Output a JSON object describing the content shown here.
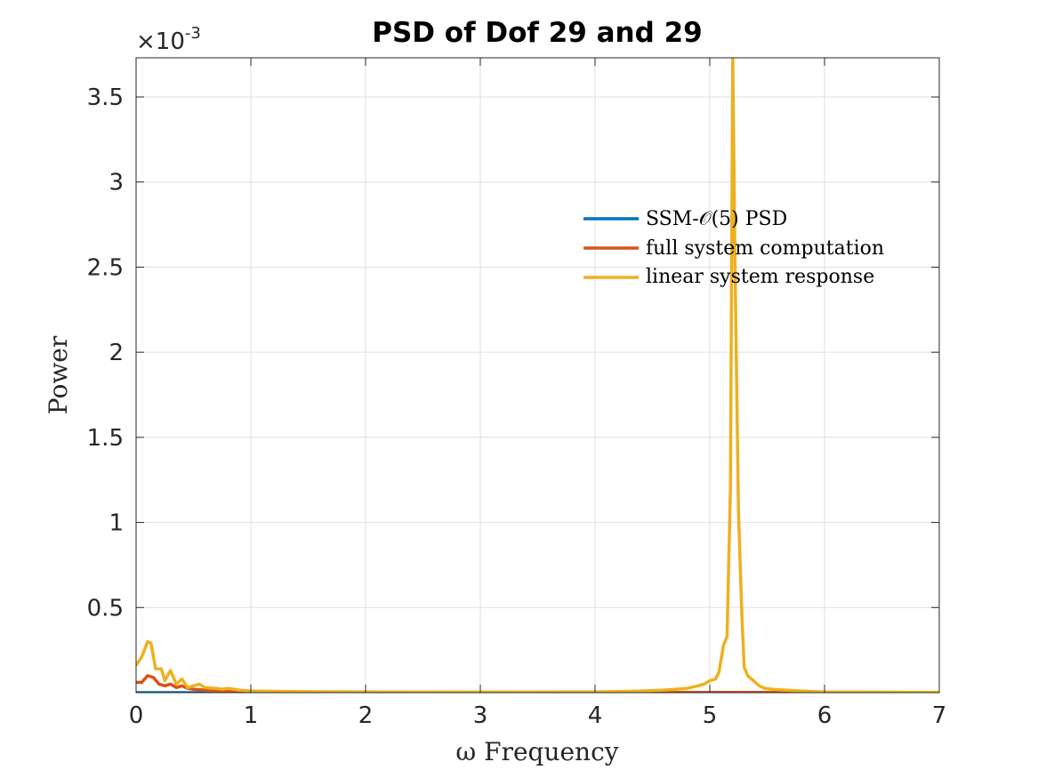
{
  "chart_data": {
    "type": "line",
    "title": "PSD of Dof 29 and 29",
    "xlabel": "ω Frequency",
    "ylabel": "Power",
    "y_exponent_label": "×10",
    "y_exponent_power": "-3",
    "xlim": [
      0,
      7
    ],
    "ylim": [
      0,
      3.73
    ],
    "x_ticks": [
      0,
      1,
      2,
      3,
      4,
      5,
      6,
      7
    ],
    "x_tick_labels": [
      "0",
      "1",
      "2",
      "3",
      "4",
      "5",
      "6",
      "7"
    ],
    "y_ticks": [
      0.5,
      1,
      1.5,
      2,
      2.5,
      3,
      3.5
    ],
    "y_tick_labels": [
      "0.5",
      "1",
      "1.5",
      "2",
      "2.5",
      "3",
      "3.5"
    ],
    "grid": true,
    "legend_position": "upper-right",
    "series": [
      {
        "name": "SSM-𝒪(5) PSD",
        "color": "#0072BD",
        "x": [
          0,
          7
        ],
        "y": [
          0,
          0
        ]
      },
      {
        "name": "full system computation",
        "color": "#D95319",
        "x": [
          0,
          0.05,
          0.1,
          0.15,
          0.2,
          0.25,
          0.3,
          0.35,
          0.4,
          0.45,
          0.5,
          0.6,
          0.7,
          0.8,
          1.0,
          1.5,
          2.0,
          3.0,
          4.0,
          5.0,
          6.0,
          7.0
        ],
        "y": [
          0.06,
          0.06,
          0.1,
          0.09,
          0.05,
          0.04,
          0.05,
          0.03,
          0.04,
          0.025,
          0.02,
          0.015,
          0.01,
          0.008,
          0.005,
          0.003,
          0.002,
          0.001,
          0.001,
          0.001,
          0.001,
          0.001
        ]
      },
      {
        "name": "linear system response",
        "color": "#EDB120",
        "x": [
          0,
          0.05,
          0.1,
          0.13,
          0.17,
          0.22,
          0.25,
          0.3,
          0.35,
          0.4,
          0.45,
          0.5,
          0.55,
          0.6,
          0.7,
          0.75,
          0.8,
          0.9,
          1.0,
          1.2,
          1.5,
          2.0,
          3.0,
          4.0,
          4.4,
          4.6,
          4.7,
          4.8,
          4.9,
          4.95,
          5.0,
          5.05,
          5.08,
          5.12,
          5.15,
          5.18,
          5.2,
          5.22,
          5.25,
          5.28,
          5.3,
          5.33,
          5.38,
          5.43,
          5.48,
          5.55,
          5.65,
          5.8,
          6.0,
          7.0
        ],
        "y": [
          0.16,
          0.21,
          0.3,
          0.29,
          0.14,
          0.14,
          0.07,
          0.13,
          0.05,
          0.08,
          0.03,
          0.04,
          0.05,
          0.03,
          0.025,
          0.02,
          0.025,
          0.015,
          0.01,
          0.008,
          0.006,
          0.004,
          0.003,
          0.004,
          0.01,
          0.015,
          0.02,
          0.025,
          0.04,
          0.05,
          0.07,
          0.08,
          0.12,
          0.28,
          0.33,
          1.2,
          3.73,
          2.5,
          1.05,
          0.45,
          0.15,
          0.1,
          0.07,
          0.04,
          0.025,
          0.02,
          0.015,
          0.01,
          0.004,
          0.002
        ]
      }
    ]
  }
}
